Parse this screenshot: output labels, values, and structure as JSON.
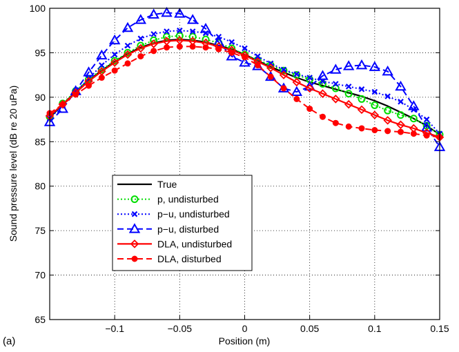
{
  "panel_label": "(a)",
  "colors": {
    "true": "#000000",
    "p_undisturbed": "#00dd00",
    "pu_undisturbed": "#0000ff",
    "pu_disturbed": "#0000ff",
    "dla_undisturbed": "#ff0000",
    "dla_disturbed": "#ff0000"
  },
  "chart_data": {
    "type": "line",
    "title": "",
    "xlabel": "Position (m)",
    "ylabel": "Sound pressure level (dB re 20 uPa)",
    "xlim": [
      -0.15,
      0.15
    ],
    "ylim": [
      65,
      100
    ],
    "xticks": [
      -0.1,
      -0.05,
      0,
      0.05,
      0.1,
      0.15
    ],
    "xtick_labels": [
      "−0.1",
      "−0.05",
      "0",
      "0.05",
      "0.1",
      "0.15"
    ],
    "yticks": [
      65,
      70,
      75,
      80,
      85,
      90,
      95,
      100
    ],
    "ytick_labels": [
      "65",
      "70",
      "75",
      "80",
      "85",
      "90",
      "95",
      "100"
    ],
    "grid": true,
    "legend_position": "lower-left",
    "series": [
      {
        "name": "True",
        "color": "black",
        "line": "solid",
        "marker": "none",
        "x": [
          -0.15,
          -0.14,
          -0.13,
          -0.12,
          -0.11,
          -0.1,
          -0.09,
          -0.08,
          -0.07,
          -0.06,
          -0.05,
          -0.04,
          -0.03,
          -0.02,
          -0.01,
          0,
          0.01,
          0.02,
          0.03,
          0.04,
          0.05,
          0.06,
          0.07,
          0.08,
          0.09,
          0.1,
          0.11,
          0.12,
          0.13,
          0.14,
          0.15
        ],
        "y": [
          87.7,
          89.2,
          90.6,
          91.9,
          93.0,
          94.0,
          94.9,
          95.6,
          96.1,
          96.4,
          96.5,
          96.4,
          96.2,
          95.8,
          95.4,
          94.8,
          94.1,
          93.4,
          92.8,
          92.2,
          91.7,
          91.3,
          90.9,
          90.5,
          90.1,
          89.6,
          89.0,
          88.3,
          87.6,
          86.8,
          85.8
        ]
      },
      {
        "name": "p, undisturbed",
        "color": "green",
        "line": "dotted",
        "marker": "circle",
        "x": [
          -0.15,
          -0.14,
          -0.13,
          -0.12,
          -0.11,
          -0.1,
          -0.09,
          -0.08,
          -0.07,
          -0.06,
          -0.05,
          -0.04,
          -0.03,
          -0.02,
          -0.01,
          0,
          0.01,
          0.02,
          0.03,
          0.04,
          0.05,
          0.06,
          0.07,
          0.08,
          0.09,
          0.1,
          0.11,
          0.12,
          0.13,
          0.14,
          0.15
        ],
        "y": [
          87.8,
          89.3,
          90.7,
          92.0,
          93.1,
          94.1,
          95.0,
          95.8,
          96.4,
          96.8,
          96.9,
          96.8,
          96.5,
          96.1,
          95.5,
          94.8,
          94.2,
          93.6,
          93.0,
          92.5,
          92.0,
          91.5,
          91.0,
          90.4,
          89.8,
          89.1,
          88.5,
          88.0,
          87.6,
          86.8,
          85.8
        ]
      },
      {
        "name": "p−u, undisturbed",
        "color": "blue",
        "line": "dotted",
        "marker": "x",
        "x": [
          -0.15,
          -0.14,
          -0.13,
          -0.12,
          -0.11,
          -0.1,
          -0.09,
          -0.08,
          -0.07,
          -0.06,
          -0.05,
          -0.04,
          -0.03,
          -0.02,
          -0.01,
          0,
          0.01,
          0.02,
          0.03,
          0.04,
          0.05,
          0.06,
          0.07,
          0.08,
          0.09,
          0.1,
          0.11,
          0.12,
          0.13,
          0.14,
          0.15
        ],
        "y": [
          87.6,
          89.1,
          90.6,
          92.1,
          93.6,
          94.8,
          95.8,
          96.6,
          97.1,
          97.4,
          97.5,
          97.4,
          97.2,
          96.8,
          96.2,
          95.5,
          94.6,
          93.8,
          93.1,
          92.6,
          92.2,
          91.8,
          91.5,
          91.2,
          90.9,
          90.6,
          90.1,
          89.5,
          88.6,
          87.5,
          85.9
        ]
      },
      {
        "name": "p−u, disturbed",
        "color": "blue",
        "line": "dashed",
        "marker": "triangle",
        "x": [
          -0.15,
          -0.14,
          -0.13,
          -0.12,
          -0.11,
          -0.1,
          -0.09,
          -0.08,
          -0.07,
          -0.06,
          -0.05,
          -0.04,
          -0.03,
          -0.02,
          -0.01,
          0,
          0.01,
          0.02,
          0.03,
          0.04,
          0.05,
          0.06,
          0.07,
          0.08,
          0.09,
          0.1,
          0.11,
          0.12,
          0.13,
          0.14,
          0.15
        ],
        "y": [
          87.2,
          88.7,
          90.7,
          92.8,
          94.7,
          96.4,
          97.8,
          98.7,
          99.3,
          99.5,
          99.4,
          98.7,
          97.7,
          96.2,
          94.6,
          93.9,
          93.5,
          92.3,
          91.0,
          90.6,
          91.2,
          92.4,
          93.1,
          93.5,
          93.6,
          93.4,
          92.9,
          91.2,
          89.0,
          86.6,
          84.4
        ]
      },
      {
        "name": "DLA, undisturbed",
        "color": "red",
        "line": "solid",
        "marker": "diamond",
        "x": [
          -0.15,
          -0.14,
          -0.13,
          -0.12,
          -0.11,
          -0.1,
          -0.09,
          -0.08,
          -0.07,
          -0.06,
          -0.05,
          -0.04,
          -0.03,
          -0.02,
          -0.01,
          0,
          0.01,
          0.02,
          0.03,
          0.04,
          0.05,
          0.06,
          0.07,
          0.08,
          0.09,
          0.1,
          0.11,
          0.12,
          0.13,
          0.14,
          0.15
        ],
        "y": [
          87.9,
          89.2,
          90.5,
          91.8,
          92.9,
          93.9,
          94.8,
          95.5,
          96.0,
          96.3,
          96.4,
          96.3,
          96.1,
          95.7,
          95.3,
          94.7,
          94.0,
          93.3,
          92.5,
          91.7,
          91.0,
          90.4,
          89.8,
          89.2,
          88.6,
          88.0,
          87.4,
          86.9,
          86.5,
          86.0,
          85.5
        ]
      },
      {
        "name": "DLA, disturbed",
        "color": "red",
        "line": "dashed",
        "marker": "dot",
        "x": [
          -0.15,
          -0.14,
          -0.13,
          -0.12,
          -0.11,
          -0.1,
          -0.09,
          -0.08,
          -0.07,
          -0.06,
          -0.05,
          -0.04,
          -0.03,
          -0.02,
          -0.01,
          0,
          0.01,
          0.02,
          0.03,
          0.04,
          0.05,
          0.06,
          0.07,
          0.08,
          0.09,
          0.1,
          0.11,
          0.12,
          0.13,
          0.14,
          0.15
        ],
        "y": [
          88.2,
          89.2,
          90.3,
          91.3,
          92.2,
          93.0,
          93.8,
          94.6,
          95.2,
          95.6,
          95.7,
          95.7,
          95.6,
          95.4,
          95.0,
          94.5,
          93.6,
          92.3,
          91.0,
          89.8,
          88.7,
          87.8,
          87.1,
          86.7,
          86.5,
          86.3,
          86.2,
          86.1,
          85.9,
          85.7,
          85.5
        ]
      }
    ]
  }
}
